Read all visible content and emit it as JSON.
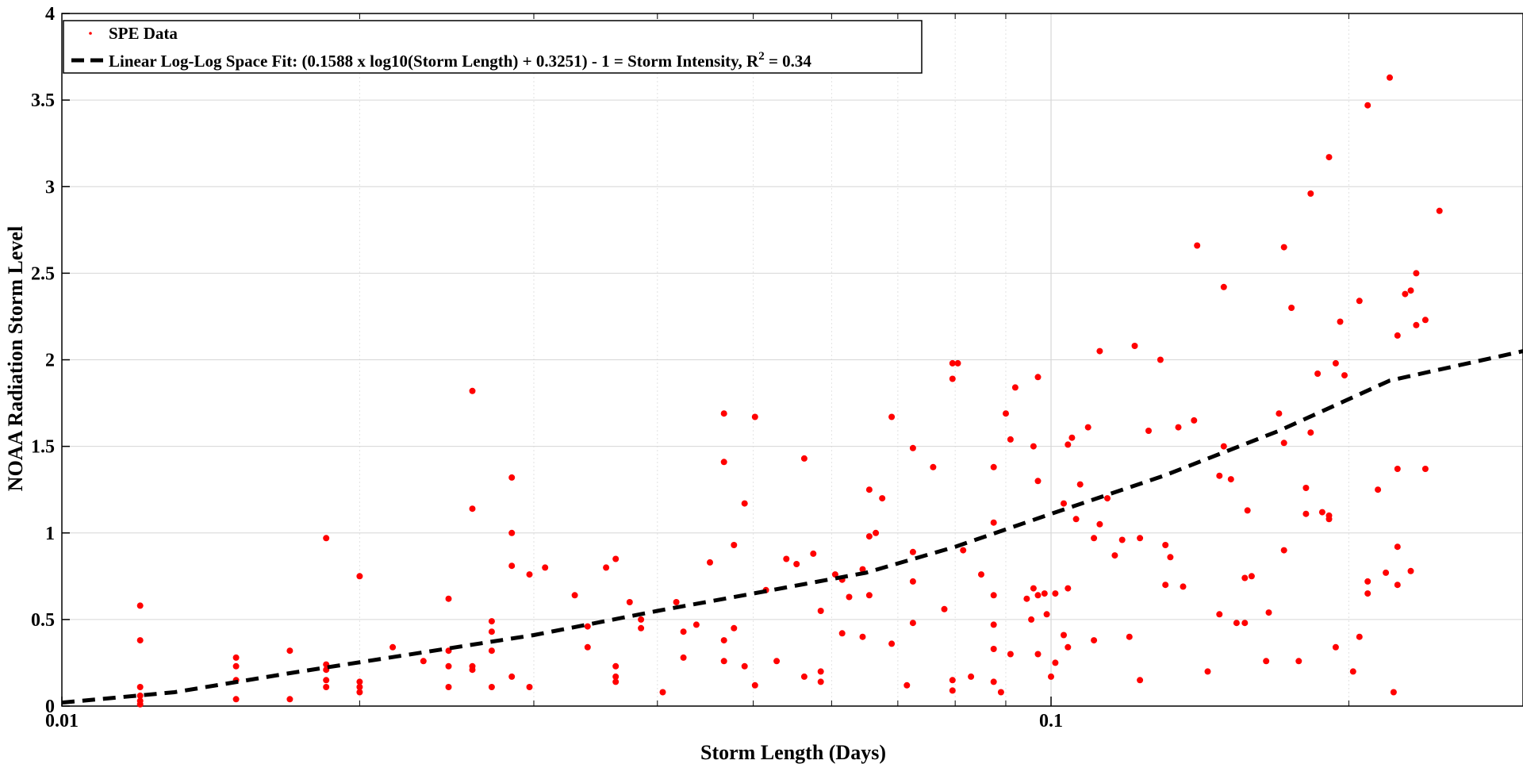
{
  "chart_data": {
    "type": "scatter",
    "xlabel": "Storm Length (Days)",
    "ylabel": "NOAA Radiation Storm Level",
    "x_scale": "log",
    "xlim": [
      0.01,
      0.3
    ],
    "ylim": [
      0,
      4
    ],
    "x_ticks": [
      0.01,
      0.1
    ],
    "x_tick_labels": [
      "0.01",
      "0.1"
    ],
    "y_ticks": [
      0,
      0.5,
      1,
      1.5,
      2,
      2.5,
      3,
      3.5,
      4
    ],
    "y_tick_labels": [
      "0",
      "0.5",
      "1",
      "1.5",
      "2",
      "2.5",
      "3",
      "3.5",
      "4"
    ],
    "grid": true,
    "legend_position": "top-left",
    "colors": {
      "points": "#ff0000",
      "fit": "#000000"
    },
    "series": [
      {
        "name": "SPE Data",
        "kind": "scatter",
        "points": [
          [
            0.012,
            0.58
          ],
          [
            0.012,
            0.38
          ],
          [
            0.012,
            0.11
          ],
          [
            0.012,
            0.06
          ],
          [
            0.012,
            0.03
          ],
          [
            0.012,
            0.01
          ],
          [
            0.015,
            0.28
          ],
          [
            0.015,
            0.23
          ],
          [
            0.015,
            0.15
          ],
          [
            0.015,
            0.04
          ],
          [
            0.017,
            0.32
          ],
          [
            0.017,
            0.04
          ],
          [
            0.0185,
            0.97
          ],
          [
            0.0185,
            0.24
          ],
          [
            0.0185,
            0.21
          ],
          [
            0.0185,
            0.15
          ],
          [
            0.0185,
            0.11
          ],
          [
            0.02,
            0.75
          ],
          [
            0.02,
            0.14
          ],
          [
            0.02,
            0.11
          ],
          [
            0.02,
            0.08
          ],
          [
            0.0216,
            0.34
          ],
          [
            0.0232,
            0.26
          ],
          [
            0.0246,
            0.62
          ],
          [
            0.0246,
            0.32
          ],
          [
            0.0246,
            0.23
          ],
          [
            0.0246,
            0.11
          ],
          [
            0.026,
            1.82
          ],
          [
            0.026,
            1.14
          ],
          [
            0.026,
            0.23
          ],
          [
            0.026,
            0.21
          ],
          [
            0.0272,
            0.49
          ],
          [
            0.0272,
            0.43
          ],
          [
            0.0272,
            0.32
          ],
          [
            0.0272,
            0.11
          ],
          [
            0.0285,
            1.32
          ],
          [
            0.0285,
            1.0
          ],
          [
            0.0285,
            0.81
          ],
          [
            0.0285,
            0.17
          ],
          [
            0.0297,
            0.76
          ],
          [
            0.0297,
            0.11
          ],
          [
            0.0308,
            0.8
          ],
          [
            0.033,
            0.64
          ],
          [
            0.034,
            0.34
          ],
          [
            0.034,
            0.46
          ],
          [
            0.0355,
            0.8
          ],
          [
            0.0363,
            0.85
          ],
          [
            0.0363,
            0.23
          ],
          [
            0.0363,
            0.17
          ],
          [
            0.0363,
            0.14
          ],
          [
            0.0375,
            0.6
          ],
          [
            0.0385,
            0.5
          ],
          [
            0.0385,
            0.45
          ],
          [
            0.0405,
            0.08
          ],
          [
            0.0418,
            0.6
          ],
          [
            0.0425,
            0.43
          ],
          [
            0.0425,
            0.28
          ],
          [
            0.0438,
            0.47
          ],
          [
            0.0452,
            0.83
          ],
          [
            0.0467,
            1.69
          ],
          [
            0.0467,
            1.41
          ],
          [
            0.0467,
            0.38
          ],
          [
            0.0467,
            0.26
          ],
          [
            0.0478,
            0.93
          ],
          [
            0.0478,
            0.45
          ],
          [
            0.049,
            1.17
          ],
          [
            0.049,
            0.23
          ],
          [
            0.0502,
            1.67
          ],
          [
            0.0502,
            0.12
          ],
          [
            0.0515,
            0.67
          ],
          [
            0.0528,
            0.26
          ],
          [
            0.054,
            0.85
          ],
          [
            0.0553,
            0.82
          ],
          [
            0.0563,
            1.43
          ],
          [
            0.0563,
            0.17
          ],
          [
            0.0575,
            0.88
          ],
          [
            0.0585,
            0.55
          ],
          [
            0.0585,
            0.2
          ],
          [
            0.0585,
            0.14
          ],
          [
            0.0605,
            0.76
          ],
          [
            0.0615,
            0.73
          ],
          [
            0.0615,
            0.42
          ],
          [
            0.0625,
            0.63
          ],
          [
            0.0645,
            0.79
          ],
          [
            0.0645,
            0.4
          ],
          [
            0.0655,
            1.25
          ],
          [
            0.0655,
            0.98
          ],
          [
            0.0655,
            0.64
          ],
          [
            0.0665,
            1.0
          ],
          [
            0.0675,
            1.2
          ],
          [
            0.069,
            1.67
          ],
          [
            0.069,
            0.36
          ],
          [
            0.0715,
            0.12
          ],
          [
            0.0725,
            1.49
          ],
          [
            0.0725,
            0.89
          ],
          [
            0.0725,
            0.72
          ],
          [
            0.0725,
            0.48
          ],
          [
            0.076,
            1.38
          ],
          [
            0.078,
            0.56
          ],
          [
            0.0795,
            1.98
          ],
          [
            0.0795,
            1.89
          ],
          [
            0.0795,
            0.15
          ],
          [
            0.0795,
            0.09
          ],
          [
            0.0805,
            1.98
          ],
          [
            0.0815,
            0.9
          ],
          [
            0.083,
            0.17
          ],
          [
            0.085,
            0.76
          ],
          [
            0.0875,
            1.38
          ],
          [
            0.0875,
            1.06
          ],
          [
            0.0875,
            0.64
          ],
          [
            0.0875,
            0.47
          ],
          [
            0.0875,
            0.33
          ],
          [
            0.0875,
            0.14
          ],
          [
            0.089,
            0.08
          ],
          [
            0.09,
            1.69
          ],
          [
            0.091,
            1.54
          ],
          [
            0.091,
            0.3
          ],
          [
            0.092,
            1.84
          ],
          [
            0.0945,
            0.62
          ],
          [
            0.0955,
            0.5
          ],
          [
            0.096,
            1.5
          ],
          [
            0.096,
            0.68
          ],
          [
            0.097,
            1.9
          ],
          [
            0.097,
            1.3
          ],
          [
            0.097,
            0.64
          ],
          [
            0.097,
            0.3
          ],
          [
            0.0985,
            0.65
          ],
          [
            0.099,
            0.53
          ],
          [
            0.1,
            0.17
          ],
          [
            0.101,
            0.65
          ],
          [
            0.101,
            0.25
          ],
          [
            0.103,
            1.17
          ],
          [
            0.103,
            0.41
          ],
          [
            0.104,
            1.51
          ],
          [
            0.104,
            0.68
          ],
          [
            0.104,
            0.34
          ],
          [
            0.105,
            1.55
          ],
          [
            0.106,
            1.08
          ],
          [
            0.107,
            1.28
          ],
          [
            0.109,
            1.61
          ],
          [
            0.1105,
            0.97
          ],
          [
            0.1105,
            0.38
          ],
          [
            0.112,
            2.05
          ],
          [
            0.112,
            1.05
          ],
          [
            0.114,
            1.2
          ],
          [
            0.116,
            0.87
          ],
          [
            0.118,
            0.96
          ],
          [
            0.12,
            0.4
          ],
          [
            0.1215,
            2.08
          ],
          [
            0.123,
            0.97
          ],
          [
            0.123,
            0.15
          ],
          [
            0.1255,
            1.59
          ],
          [
            0.129,
            2.0
          ],
          [
            0.1305,
            0.93
          ],
          [
            0.1305,
            0.7
          ],
          [
            0.132,
            0.86
          ],
          [
            0.1345,
            1.61
          ],
          [
            0.136,
            0.69
          ],
          [
            0.1395,
            1.65
          ],
          [
            0.1405,
            2.66
          ],
          [
            0.144,
            0.2
          ],
          [
            0.148,
            1.33
          ],
          [
            0.148,
            0.53
          ],
          [
            0.1495,
            2.42
          ],
          [
            0.1495,
            1.5
          ],
          [
            0.152,
            1.31
          ],
          [
            0.154,
            0.48
          ],
          [
            0.157,
            0.74
          ],
          [
            0.157,
            0.48
          ],
          [
            0.158,
            1.13
          ],
          [
            0.1595,
            0.75
          ],
          [
            0.165,
            0.26
          ],
          [
            0.166,
            0.54
          ],
          [
            0.17,
            1.69
          ],
          [
            0.172,
            2.65
          ],
          [
            0.172,
            1.52
          ],
          [
            0.172,
            0.9
          ],
          [
            0.175,
            2.3
          ],
          [
            0.178,
            0.26
          ],
          [
            0.181,
            1.26
          ],
          [
            0.181,
            1.11
          ],
          [
            0.183,
            2.96
          ],
          [
            0.183,
            1.58
          ],
          [
            0.186,
            1.92
          ],
          [
            0.188,
            1.12
          ],
          [
            0.191,
            3.17
          ],
          [
            0.191,
            1.1
          ],
          [
            0.191,
            1.08
          ],
          [
            0.194,
            1.98
          ],
          [
            0.194,
            0.34
          ],
          [
            0.196,
            2.22
          ],
          [
            0.198,
            1.91
          ],
          [
            0.202,
            0.2
          ],
          [
            0.205,
            2.34
          ],
          [
            0.205,
            0.4
          ],
          [
            0.209,
            3.47
          ],
          [
            0.209,
            0.72
          ],
          [
            0.209,
            0.65
          ],
          [
            0.214,
            1.25
          ],
          [
            0.218,
            0.77
          ],
          [
            0.22,
            3.63
          ],
          [
            0.222,
            0.08
          ],
          [
            0.224,
            2.14
          ],
          [
            0.224,
            1.37
          ],
          [
            0.224,
            0.92
          ],
          [
            0.224,
            0.7
          ],
          [
            0.228,
            2.38
          ],
          [
            0.231,
            2.4
          ],
          [
            0.231,
            0.78
          ],
          [
            0.234,
            2.5
          ],
          [
            0.234,
            2.2
          ],
          [
            0.239,
            2.23
          ],
          [
            0.239,
            1.37
          ],
          [
            0.247,
            2.86
          ]
        ]
      },
      {
        "name": "Linear Log-Log Space Fit: (0.1588 x log10(Storm Length) + 0.3251) - 1 = Storm Intensity,  R",
        "kind": "line",
        "style": "dashed",
        "r2_superscript": "2",
        "r2_value": " = 0.34",
        "x": [
          0.01,
          0.013,
          0.017,
          0.022,
          0.03,
          0.04,
          0.05,
          0.065,
          0.08,
          0.1,
          0.13,
          0.17,
          0.22,
          0.3
        ],
        "y": [
          0.02,
          0.08,
          0.19,
          0.29,
          0.41,
          0.55,
          0.65,
          0.77,
          0.92,
          1.11,
          1.33,
          1.59,
          1.88,
          2.05
        ]
      }
    ]
  }
}
